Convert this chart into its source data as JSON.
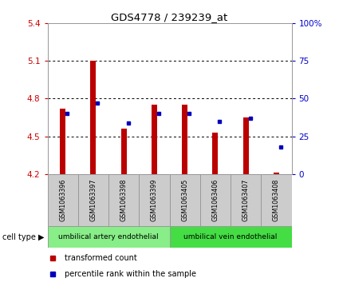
{
  "title": "GDS4778 / 239239_at",
  "samples": [
    "GSM1063396",
    "GSM1063397",
    "GSM1063398",
    "GSM1063399",
    "GSM1063405",
    "GSM1063406",
    "GSM1063407",
    "GSM1063408"
  ],
  "transformed_count": [
    4.72,
    5.1,
    4.56,
    4.75,
    4.75,
    4.53,
    4.65,
    4.21
  ],
  "percentile_rank": [
    40,
    47,
    34,
    40,
    40,
    35,
    37,
    18
  ],
  "ylim_left": [
    4.2,
    5.4
  ],
  "ylim_right": [
    0,
    100
  ],
  "yticks_left": [
    4.2,
    4.5,
    4.8,
    5.1,
    5.4
  ],
  "yticks_right": [
    0,
    25,
    50,
    75,
    100
  ],
  "ytick_labels_right": [
    "0",
    "25",
    "50",
    "75",
    "100%"
  ],
  "bar_color": "#bb0000",
  "dot_color": "#0000bb",
  "grid_color": "#000000",
  "cell_types": [
    {
      "label": "umbilical artery endothelial",
      "start": 0,
      "end": 4,
      "color": "#88ee88"
    },
    {
      "label": "umbilical vein endothelial",
      "start": 4,
      "end": 8,
      "color": "#44dd44"
    }
  ],
  "cell_type_label": "cell type",
  "legend_items": [
    {
      "color": "#bb0000",
      "label": "transformed count"
    },
    {
      "color": "#0000bb",
      "label": "percentile rank within the sample"
    }
  ],
  "bar_width": 0.18,
  "bar_bottom": 4.2,
  "background_color": "#ffffff",
  "plot_bg_color": "#ffffff",
  "tick_label_color_left": "#cc0000",
  "tick_label_color_right": "#0000cc",
  "col_bg_color": "#cccccc",
  "col_border_color": "#999999"
}
